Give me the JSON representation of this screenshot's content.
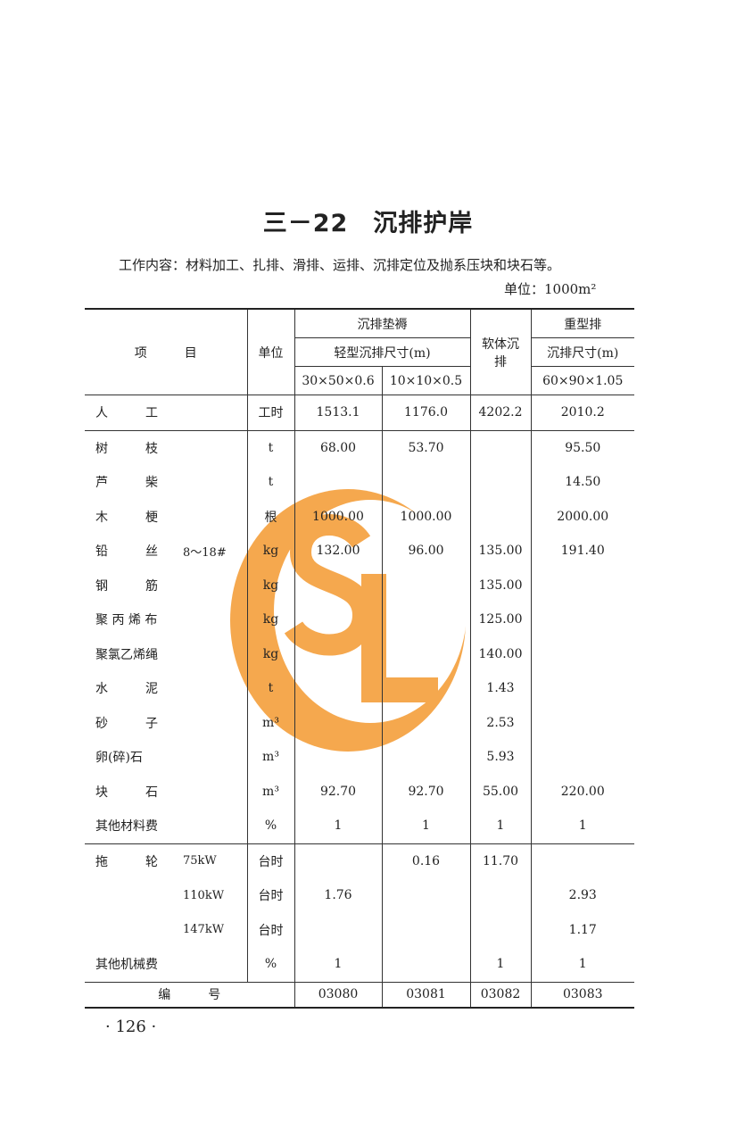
{
  "title": "三－22　沉排护岸",
  "work_content": "工作内容：材料加工、扎排、滑排、运排、沉排定位及抛系压块和块石等。",
  "unit_line": "单位：1000m²",
  "watermark": {
    "text": "SL",
    "color": "#f5a84e"
  },
  "header": {
    "item": "项　　　目",
    "unit": "单位",
    "group1": "沉排垫褥",
    "group1_sub": "轻型沉排尺寸(m)",
    "col1": "30×50×0.6",
    "col2": "10×10×0.5",
    "col3": "软体沉排",
    "group4": "重型排",
    "group4_sub": "沉排尺寸(m)",
    "col4": "60×90×1.05"
  },
  "labor": {
    "item": "人　　　工",
    "unit": "工时",
    "values": [
      "1513.1",
      "1176.0",
      "4202.2",
      "2010.2"
    ]
  },
  "materials": [
    {
      "item": "树　　　枝",
      "spec": "",
      "unit": "t",
      "values": [
        "68.00",
        "53.70",
        "",
        "95.50"
      ]
    },
    {
      "item": "芦　　　柴",
      "spec": "",
      "unit": "t",
      "values": [
        "",
        "",
        "",
        "14.50"
      ]
    },
    {
      "item": "木　　　梗",
      "spec": "",
      "unit": "根",
      "values": [
        "1000.00",
        "1000.00",
        "",
        "2000.00"
      ]
    },
    {
      "item": "铅　　　丝",
      "spec": "8～18#",
      "unit": "kg",
      "values": [
        "132.00",
        "96.00",
        "135.00",
        "191.40"
      ]
    },
    {
      "item": "钢　　　筋",
      "spec": "",
      "unit": "kg",
      "values": [
        "",
        "",
        "135.00",
        ""
      ]
    },
    {
      "item": "聚 丙 烯 布",
      "spec": "",
      "unit": "kg",
      "values": [
        "",
        "",
        "125.00",
        ""
      ]
    },
    {
      "item": "聚氯乙烯绳",
      "spec": "",
      "unit": "kg",
      "values": [
        "",
        "",
        "140.00",
        ""
      ]
    },
    {
      "item": "水　　　泥",
      "spec": "",
      "unit": "t",
      "values": [
        "",
        "",
        "1.43",
        ""
      ]
    },
    {
      "item": "砂　　　子",
      "spec": "",
      "unit": "m³",
      "values": [
        "",
        "",
        "2.53",
        ""
      ]
    },
    {
      "item": "卵(碎)石",
      "spec": "",
      "unit": "m³",
      "values": [
        "",
        "",
        "5.93",
        ""
      ]
    },
    {
      "item": "块　　　石",
      "spec": "",
      "unit": "m³",
      "values": [
        "92.70",
        "92.70",
        "55.00",
        "220.00"
      ]
    },
    {
      "item": "其他材料费",
      "spec": "",
      "unit": "%",
      "values": [
        "1",
        "1",
        "1",
        "1"
      ]
    }
  ],
  "machinery": [
    {
      "item": "拖　　　轮",
      "spec": "75kW",
      "unit": "台时",
      "values": [
        "",
        "0.16",
        "11.70",
        ""
      ]
    },
    {
      "item": "",
      "spec": "110kW",
      "unit": "台时",
      "values": [
        "1.76",
        "",
        "",
        "2.93"
      ]
    },
    {
      "item": "",
      "spec": "147kW",
      "unit": "台时",
      "values": [
        "",
        "",
        "",
        "1.17"
      ]
    },
    {
      "item": "其他机械费",
      "spec": "",
      "unit": "%",
      "values": [
        "1",
        "",
        "1",
        "1"
      ]
    }
  ],
  "footer": {
    "label": "编　　　号",
    "codes": [
      "03080",
      "03081",
      "03082",
      "03083"
    ]
  },
  "page_number": "· 126 ·"
}
